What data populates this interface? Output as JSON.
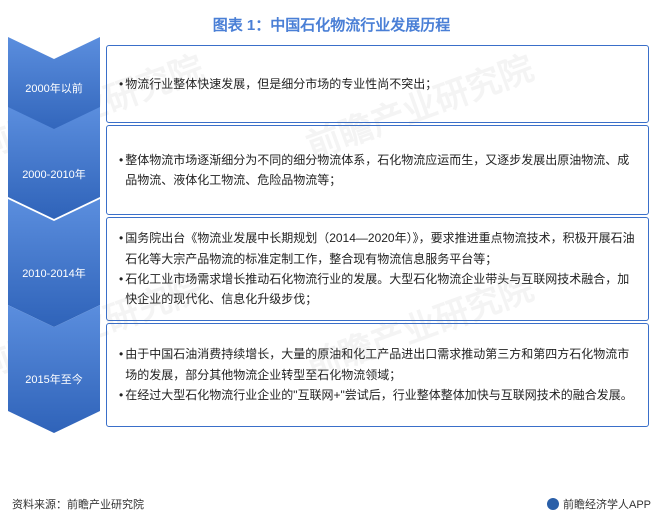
{
  "title": "图表 1：中国石化物流行业发展历程",
  "chevron_light": "#5b8ede",
  "chevron_dark": "#2f63b9",
  "border_color": "#3a6fc9",
  "background_color": "#ffffff",
  "text_color": "#222222",
  "title_color": "#4a7fd6",
  "title_fontsize": 15,
  "body_fontsize": 12,
  "label_fontsize": 11,
  "stages": [
    {
      "period": "2000年以前",
      "bullets": [
        "物流行业整体快速发展，但是细分市场的专业性尚不突出；"
      ]
    },
    {
      "period": "2000-2010年",
      "bullets": [
        "整体物流市场逐渐细分为不同的细分物流体系，石化物流应运而生，又逐步发展出原油物流、成品物流、液体化工物流、危险品物流等；"
      ]
    },
    {
      "period": "2010-2014年",
      "bullets": [
        "国务院出台《物流业发展中长期规划（2014—2020年）》，要求推进重点物流技术，积极开展石油石化等大宗产品物流的标准定制工作，整合现有物流信息服务平台等；",
        "石化工业市场需求增长推动石化物流行业的发展。大型石化物流企业带头与互联网技术融合，加快企业的现代化、信息化升级步伐；"
      ]
    },
    {
      "period": "2015年至今",
      "bullets": [
        "由于中国石油消费持续增长，大量的原油和化工产品进出口需求推动第三方和第四方石化物流市场的发展，部分其他物流企业转型至石化物流领域；",
        "在经过大型石化物流行业企业的\"互联网+\"尝试后，行业整体整体加快与互联网技术的融合发展。"
      ]
    }
  ],
  "footer_left": "资料来源：前瞻产业研究院",
  "footer_right": "前瞻经济学人APP",
  "watermark_text": "前瞻产业研究院"
}
